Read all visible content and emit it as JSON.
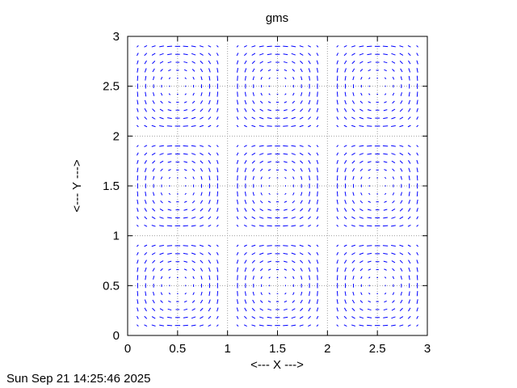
{
  "chart_data": {
    "type": "vector_field",
    "title": "gms",
    "xlabel": "<--- X --->",
    "ylabel": "<--- Y --->",
    "xlim": [
      0,
      3
    ],
    "ylim": [
      0,
      3
    ],
    "xticks": [
      "0",
      "0.5",
      "1",
      "1.5",
      "2",
      "2.5",
      "3"
    ],
    "yticks": [
      "0",
      "0.5",
      "1",
      "1.5",
      "2",
      "2.5",
      "3"
    ],
    "grid": true,
    "grid_style": "dotted",
    "vector_color": "#0000ff",
    "cells": {
      "nx": 3,
      "ny": 3,
      "cell_width": 1,
      "cell_height": 1,
      "sample_start": 0.1,
      "sample_step": 0.08,
      "sample_count": 11,
      "pattern": "vortex"
    }
  },
  "timestamp": "Sun Sep 21 14:25:46 2025"
}
